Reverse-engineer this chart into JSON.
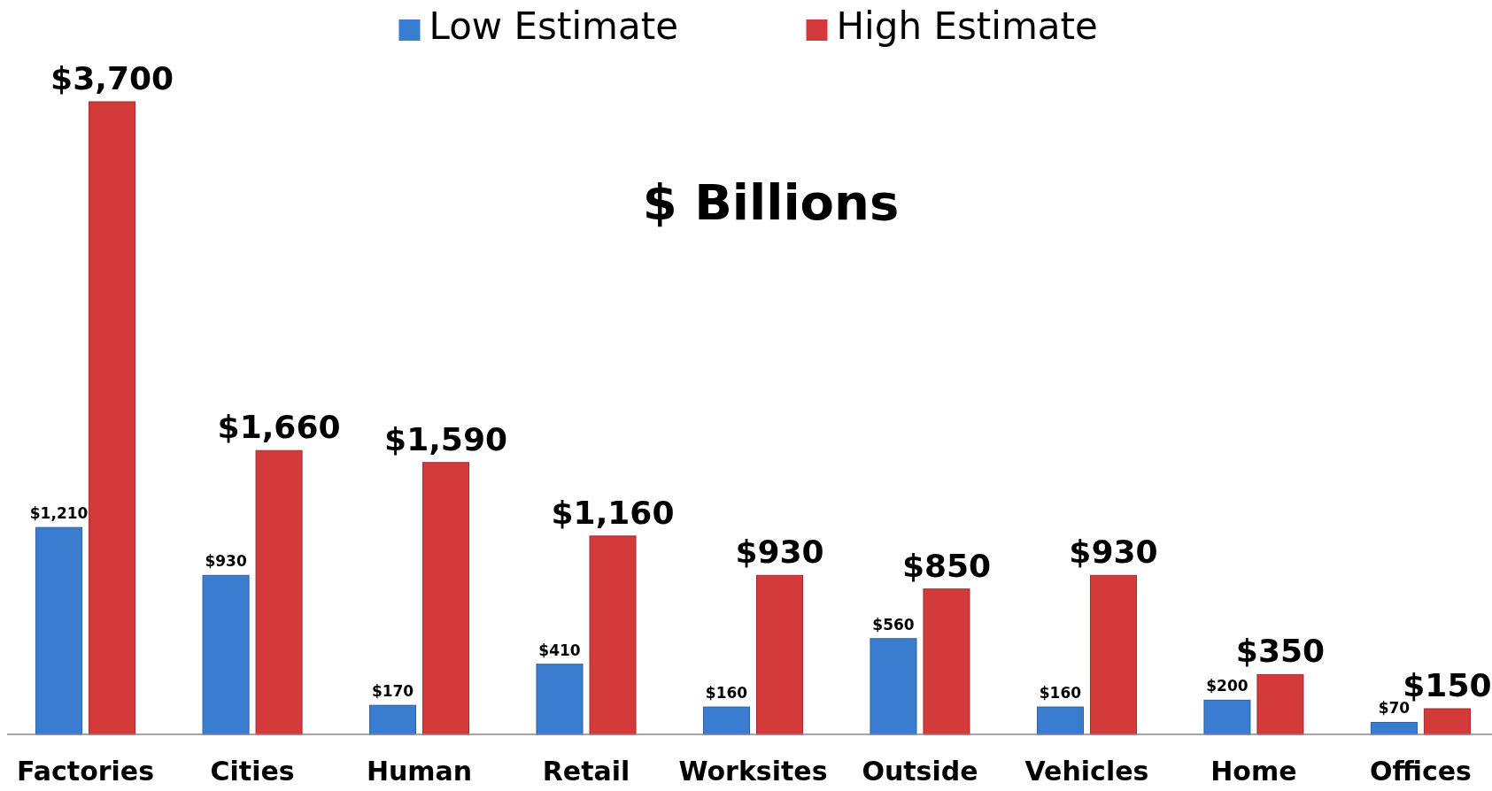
{
  "chart_data": {
    "type": "bar",
    "title": "$ Billions",
    "categories": [
      "Factories",
      "Cities",
      "Human",
      "Retail",
      "Worksites",
      "Outside",
      "Vehicles",
      "Home",
      "Offices"
    ],
    "series": [
      {
        "name": "Low Estimate",
        "color": "#3a7dd0",
        "values": [
          1210,
          930,
          170,
          410,
          160,
          560,
          160,
          200,
          70
        ],
        "value_labels": [
          "$1,210",
          "$930",
          "$170",
          "$410",
          "$160",
          "$560",
          "$160",
          "$200",
          "$70"
        ]
      },
      {
        "name": "High Estimate",
        "color": "#d43a3a",
        "values": [
          3700,
          1660,
          1590,
          1160,
          930,
          850,
          930,
          350,
          150
        ],
        "value_labels": [
          "$3,700",
          "$1,660",
          "$1,590",
          "$1,160",
          "$930",
          "$850",
          "$930",
          "$350",
          "$150"
        ]
      }
    ],
    "legend": "top"
  }
}
